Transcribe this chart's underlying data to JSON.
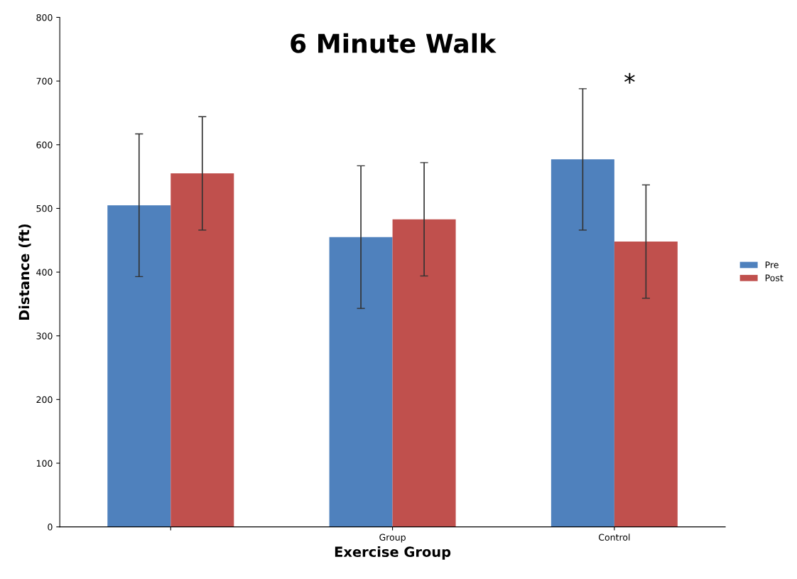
{
  "chart_data": {
    "type": "bar",
    "title": "6 Minute Walk",
    "xlabel": "Exercise Group",
    "ylabel": "Distance (ft)",
    "categories": [
      null,
      "Group",
      "Control"
    ],
    "series": [
      {
        "name": "Pre",
        "color": "#4f81bd",
        "values": [
          505,
          455,
          577
        ],
        "errors": [
          112,
          112,
          111
        ]
      },
      {
        "name": "Post",
        "color": "#c0504d",
        "values": [
          555,
          483,
          448
        ],
        "errors": [
          89,
          89,
          89
        ]
      }
    ],
    "ylim": [
      0,
      800
    ],
    "yticks": [
      0,
      100,
      200,
      300,
      400,
      500,
      600,
      700,
      800
    ],
    "annotations": [
      "*"
    ],
    "grid": false,
    "legend": "right"
  }
}
